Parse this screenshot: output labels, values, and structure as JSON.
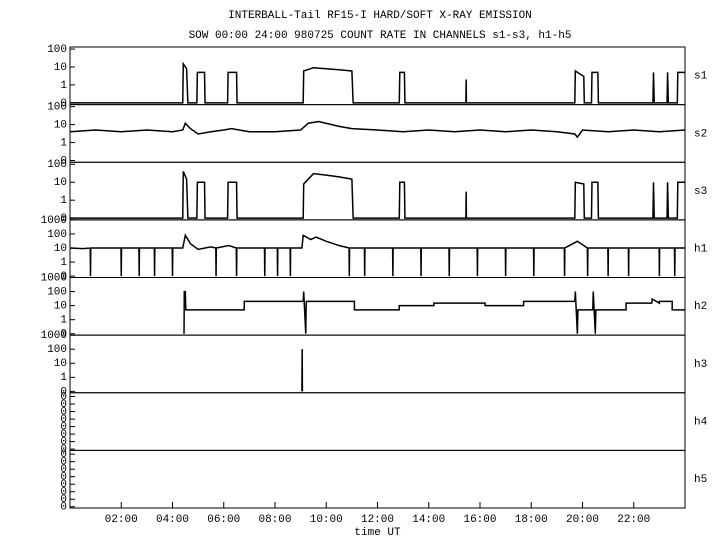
{
  "header": {
    "title": "INTERBALL-Tail RF15-I HARD/SOFT X-RAY EMISSION",
    "subtitle": "SOW 00:00 24:00 980725  COUNT RATE IN CHANNELS s1-s3, h1-h5"
  },
  "chart_data": [
    {
      "type": "line",
      "label": "s1",
      "log": true,
      "color": "#000000",
      "xlim": [
        0,
        24
      ],
      "ylim": [
        0.08,
        130
      ],
      "yticks": [
        100,
        10,
        1,
        {
          "value": 0.1,
          "label": "0"
        }
      ],
      "x": [
        0,
        4.4,
        4.42,
        4.55,
        4.6,
        4.95,
        4.97,
        5.25,
        5.27,
        6.15,
        6.17,
        6.5,
        6.52,
        9.1,
        9.12,
        9.5,
        10,
        10.5,
        11.0,
        11.05,
        12.85,
        12.87,
        13.05,
        13.07,
        15.45,
        15.46,
        15.47,
        19.7,
        19.72,
        20.05,
        20.07,
        20.35,
        20.37,
        20.6,
        20.62,
        22.75,
        22.77,
        22.8,
        23.3,
        23.32,
        23.35,
        23.7,
        23.72,
        24
      ],
      "values": [
        0.1,
        0.1,
        15,
        8,
        0.1,
        0.1,
        5,
        5,
        0.1,
        0.1,
        5,
        5,
        0.1,
        0.1,
        6,
        9,
        8,
        7,
        6,
        0.1,
        0.1,
        5,
        5,
        0.1,
        0.1,
        2,
        0.1,
        0.1,
        6,
        3,
        0.1,
        0.1,
        5,
        5,
        0.1,
        0.1,
        5,
        0.1,
        0.1,
        5,
        0.1,
        0.1,
        5,
        5
      ]
    },
    {
      "type": "line",
      "label": "s2",
      "log": true,
      "color": "#000000",
      "xlim": [
        0,
        24
      ],
      "ylim": [
        0.08,
        130
      ],
      "yticks": [
        100,
        10,
        1,
        {
          "value": 0.1,
          "label": "0"
        }
      ],
      "x": [
        0,
        1,
        2,
        3,
        4,
        4.4,
        4.5,
        4.7,
        5,
        5.5,
        6,
        6.3,
        7,
        8,
        9,
        9.3,
        9.7,
        10.5,
        11,
        12,
        13,
        14,
        15,
        16,
        17,
        18,
        19,
        19.7,
        19.8,
        20,
        21,
        22,
        23,
        24
      ],
      "values": [
        4,
        5,
        4,
        5,
        4,
        5,
        12,
        6,
        3,
        4,
        5,
        6,
        4,
        4,
        5,
        12,
        15,
        8,
        6,
        5,
        4,
        5,
        4,
        5,
        4,
        5,
        4,
        3,
        2,
        5,
        4,
        5,
        4,
        5
      ]
    },
    {
      "type": "line",
      "label": "s3",
      "log": true,
      "color": "#000000",
      "xlim": [
        0,
        24
      ],
      "ylim": [
        0.08,
        130
      ],
      "yticks": [
        100,
        10,
        1,
        {
          "value": 0.1,
          "label": "0"
        }
      ],
      "x": [
        0,
        4.4,
        4.42,
        4.55,
        4.6,
        4.95,
        4.97,
        5.25,
        5.27,
        6.15,
        6.17,
        6.5,
        6.52,
        9.1,
        9.12,
        9.5,
        10,
        10.5,
        11.0,
        11.05,
        12.85,
        12.87,
        13.05,
        13.07,
        15.45,
        15.46,
        15.47,
        19.7,
        19.72,
        20.05,
        20.07,
        20.35,
        20.37,
        20.6,
        20.62,
        22.75,
        22.77,
        22.8,
        23.3,
        23.32,
        23.35,
        23.7,
        23.72,
        24
      ],
      "values": [
        0.1,
        0.1,
        40,
        15,
        0.1,
        0.1,
        10,
        10,
        0.1,
        0.1,
        10,
        10,
        0.1,
        0.1,
        8,
        30,
        25,
        20,
        15,
        0.1,
        0.1,
        10,
        10,
        0.1,
        0.1,
        3,
        0.1,
        0.1,
        10,
        8,
        0.1,
        0.1,
        10,
        10,
        0.1,
        0.1,
        10,
        0.1,
        0.1,
        10,
        0.1,
        0.1,
        10,
        10
      ]
    },
    {
      "type": "line",
      "label": "h1",
      "log": true,
      "color": "#000000",
      "xlim": [
        0,
        24
      ],
      "ylim": [
        0.08,
        1000
      ],
      "yticks": [
        1000,
        100,
        10,
        1,
        {
          "value": 0.1,
          "label": "0"
        }
      ],
      "x": [
        0,
        0.5,
        0.79,
        0.8,
        0.81,
        1.5,
        1.99,
        2.0,
        2.01,
        2.69,
        2.7,
        2.71,
        3.29,
        3.3,
        3.31,
        3.99,
        4.0,
        4.01,
        4.4,
        4.5,
        4.7,
        5.0,
        5.5,
        5.69,
        5.7,
        5.71,
        6.2,
        6.49,
        6.5,
        6.51,
        7.0,
        7.59,
        7.6,
        7.61,
        8.09,
        8.1,
        8.11,
        8.59,
        8.6,
        8.61,
        9.05,
        9.1,
        9.4,
        9.6,
        10.0,
        10.5,
        10.89,
        10.9,
        10.91,
        11.49,
        11.5,
        11.51,
        12.59,
        12.6,
        12.61,
        13.0,
        13.69,
        13.7,
        13.71,
        14.79,
        14.8,
        14.81,
        15.89,
        15.9,
        15.91,
        16.99,
        17.0,
        17.01,
        18.09,
        18.1,
        18.11,
        19.29,
        19.3,
        19.31,
        19.8,
        20.19,
        20.2,
        20.21,
        20.99,
        21.0,
        21.01,
        21.79,
        21.8,
        21.81,
        22.99,
        23.0,
        23.01,
        23.59,
        23.6,
        23.61,
        24
      ],
      "values": [
        10,
        9,
        10,
        0.1,
        10,
        10,
        10,
        0.1,
        10,
        10,
        0.1,
        10,
        10,
        0.1,
        10,
        10,
        0.1,
        10,
        10,
        80,
        20,
        8,
        12,
        10,
        0.1,
        10,
        15,
        10,
        0.1,
        10,
        10,
        10,
        0.1,
        10,
        10,
        0.1,
        10,
        10,
        0.1,
        10,
        10,
        80,
        40,
        60,
        30,
        15,
        10,
        0.1,
        10,
        10,
        0.1,
        10,
        10,
        0.1,
        10,
        10,
        10,
        0.1,
        10,
        10,
        0.1,
        10,
        10,
        0.1,
        10,
        10,
        0.1,
        10,
        10,
        0.1,
        10,
        10,
        0.1,
        10,
        30,
        10,
        0.1,
        10,
        10,
        0.1,
        10,
        10,
        0.1,
        10,
        10,
        0.1,
        10,
        10,
        0.1,
        10,
        10
      ]
    },
    {
      "type": "line",
      "label": "h2",
      "log": true,
      "color": "#000000",
      "xlim": [
        0,
        24
      ],
      "ylim": [
        0.08,
        1000
      ],
      "yticks": [
        1000,
        100,
        10,
        1,
        {
          "value": 0.1,
          "label": "0"
        }
      ],
      "x": [
        4.45,
        4.46,
        4.5,
        4.52,
        6.8,
        6.8,
        9.1,
        9.12,
        9.2,
        9.22,
        11.1,
        11.1,
        12.85,
        12.85,
        14.2,
        14.2,
        16.2,
        16.2,
        17.7,
        17.7,
        19.7,
        19.72,
        19.8,
        19.82,
        20.4,
        20.42,
        20.5,
        20.52,
        21.7,
        21.7,
        22.7,
        22.72,
        23.0,
        23.0,
        23.5,
        23.5,
        24
      ],
      "values": [
        0.1,
        100,
        100,
        5,
        5,
        20,
        20,
        100,
        0.1,
        20,
        20,
        5,
        5,
        10,
        10,
        15,
        15,
        10,
        10,
        20,
        20,
        100,
        0.1,
        5,
        5,
        100,
        0.1,
        5,
        5,
        15,
        15,
        30,
        15,
        20,
        20,
        5,
        5
      ]
    },
    {
      "type": "line",
      "label": "h3",
      "log": true,
      "color": "#000000",
      "xlim": [
        0,
        24
      ],
      "ylim": [
        0.08,
        1000
      ],
      "yticks": [
        1000,
        100,
        10,
        1,
        {
          "value": 0.1,
          "label": "0"
        }
      ],
      "x": [
        9.05,
        9.06,
        9.07
      ],
      "values": [
        0.1,
        100,
        0.1
      ]
    },
    {
      "type": "line",
      "label": "h4",
      "log": false,
      "color": "#000000",
      "xlim": [
        0,
        24
      ],
      "ylim": [
        -0.01,
        0.45
      ],
      "yticks": [
        0,
        {
          "value": 0.06,
          "label": "0"
        },
        {
          "value": 0.12,
          "label": "0"
        },
        {
          "value": 0.18,
          "label": "0"
        },
        {
          "value": 0.24,
          "label": "0"
        },
        {
          "value": 0.3,
          "label": "0"
        },
        {
          "value": 0.36,
          "label": "0"
        },
        {
          "value": 0.42,
          "label": "0"
        }
      ]
    },
    {
      "type": "line",
      "label": "h5",
      "log": false,
      "color": "#000000",
      "xlim": [
        0,
        24
      ],
      "ylim": [
        -0.01,
        0.45
      ],
      "yticks": [
        0,
        {
          "value": 0.06,
          "label": "0"
        },
        {
          "value": 0.12,
          "label": "0"
        },
        {
          "value": 0.18,
          "label": "0"
        },
        {
          "value": 0.24,
          "label": "0"
        },
        {
          "value": 0.3,
          "label": "0"
        },
        {
          "value": 0.36,
          "label": "0"
        },
        {
          "value": 0.42,
          "label": "0"
        }
      ],
      "xlabel": "time UT",
      "xticks": [
        {
          "value": 2,
          "label": "02:00"
        },
        {
          "value": 4,
          "label": "04:00"
        },
        {
          "value": 6,
          "label": "06:00"
        },
        {
          "value": 8,
          "label": "08:00"
        },
        {
          "value": 10,
          "label": "10:00"
        },
        {
          "value": 12,
          "label": "12:00"
        },
        {
          "value": 14,
          "label": "14:00"
        },
        {
          "value": 16,
          "label": "16:00"
        },
        {
          "value": 18,
          "label": "18:00"
        },
        {
          "value": 20,
          "label": "20:00"
        },
        {
          "value": 22,
          "label": "22:00"
        }
      ]
    }
  ]
}
